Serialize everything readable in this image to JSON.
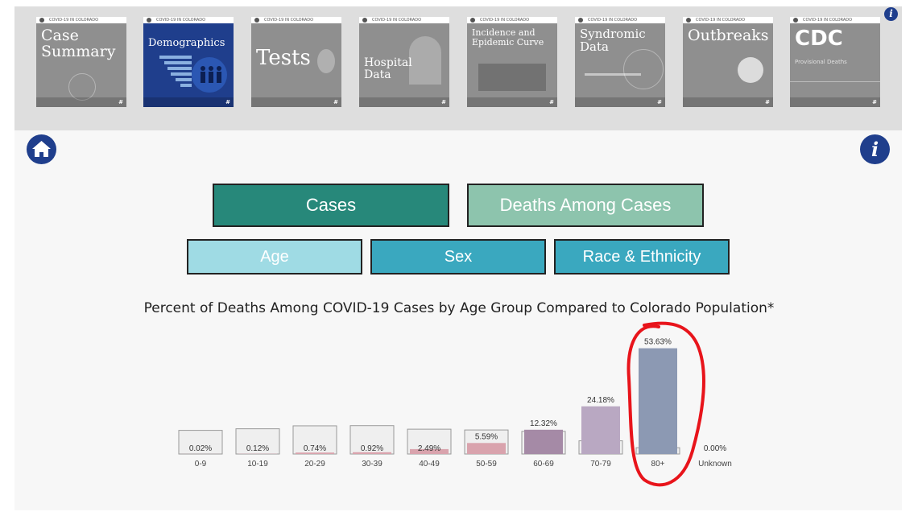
{
  "tiles": [
    {
      "header": "COVID-19 IN COLORADO",
      "title": "Case\nSummary",
      "size": "big"
    },
    {
      "header": "COVID-19 IN COLORADO",
      "title": "Demographics",
      "size": "mid"
    },
    {
      "header": "COVID-19 IN COLORADO",
      "title": "Tests",
      "size": "big"
    },
    {
      "header": "COVID-19 IN COLORADO",
      "title": "Hospital\nData",
      "size": "mid"
    },
    {
      "header": "COVID-19 IN COLORADO",
      "title": "Incidence and\nEpidemic Curve",
      "size": "small"
    },
    {
      "header": "COVID-19 IN COLORADO",
      "title": "Syndromic\nData",
      "size": "mid"
    },
    {
      "header": "COVID-19 IN COLORADO",
      "title": "Outbreaks",
      "size": "big"
    },
    {
      "header": "COVID-19 IN COLORADO",
      "title": "CDC",
      "size": "big",
      "subtitle": "Provisional Deaths"
    }
  ],
  "tile_logo": "#",
  "info_glyph": "i",
  "buttons": {
    "cases": "Cases",
    "deaths": "Deaths Among Cases",
    "age": "Age",
    "sex": "Sex",
    "race": "Race & Ethnicity"
  },
  "colors": {
    "navy": "#1f3e8c",
    "cases_button": "#27887a",
    "deaths_button": "#8dc4ad",
    "age_button": "#9fdbe4",
    "sex_race_button": "#3aa8bf",
    "highlight_circle": "#e8141b"
  },
  "chart_data": {
    "type": "bar",
    "title": "Percent of Deaths Among COVID-19 Cases by Age Group Compared to Colorado Population*",
    "categories": [
      "0-9",
      "10-19",
      "20-29",
      "30-39",
      "40-49",
      "50-59",
      "60-69",
      "70-79",
      "80+",
      "Unknown"
    ],
    "series": [
      {
        "values": [
          0.02,
          0.12,
          0.74,
          0.92,
          2.49,
          5.59,
          12.32,
          24.18,
          53.63,
          0.0
        ],
        "labels": [
          "0.02%",
          "0.12%",
          "0.74%",
          "0.92%",
          "2.49%",
          "5.59%",
          "12.32%",
          "24.18%",
          "53.63%",
          "0.00%"
        ]
      },
      {
        "values": [
          12.0,
          12.8,
          14.3,
          14.4,
          12.6,
          12.2,
          11.5,
          6.7,
          3.2,
          null
        ]
      }
    ],
    "bar_colors": [
      "#d9a3ad",
      "#d9a3ad",
      "#d9a3ad",
      "#d9a3ad",
      "#d9a3ad",
      "#d9a3ad",
      "#a58aa6",
      "#b9a8c2",
      "#8c99b3",
      "#cccccc"
    ],
    "ylim": [
      0,
      55
    ],
    "grid": false,
    "annotation": "red hand-drawn circle around the 80+ bar"
  }
}
